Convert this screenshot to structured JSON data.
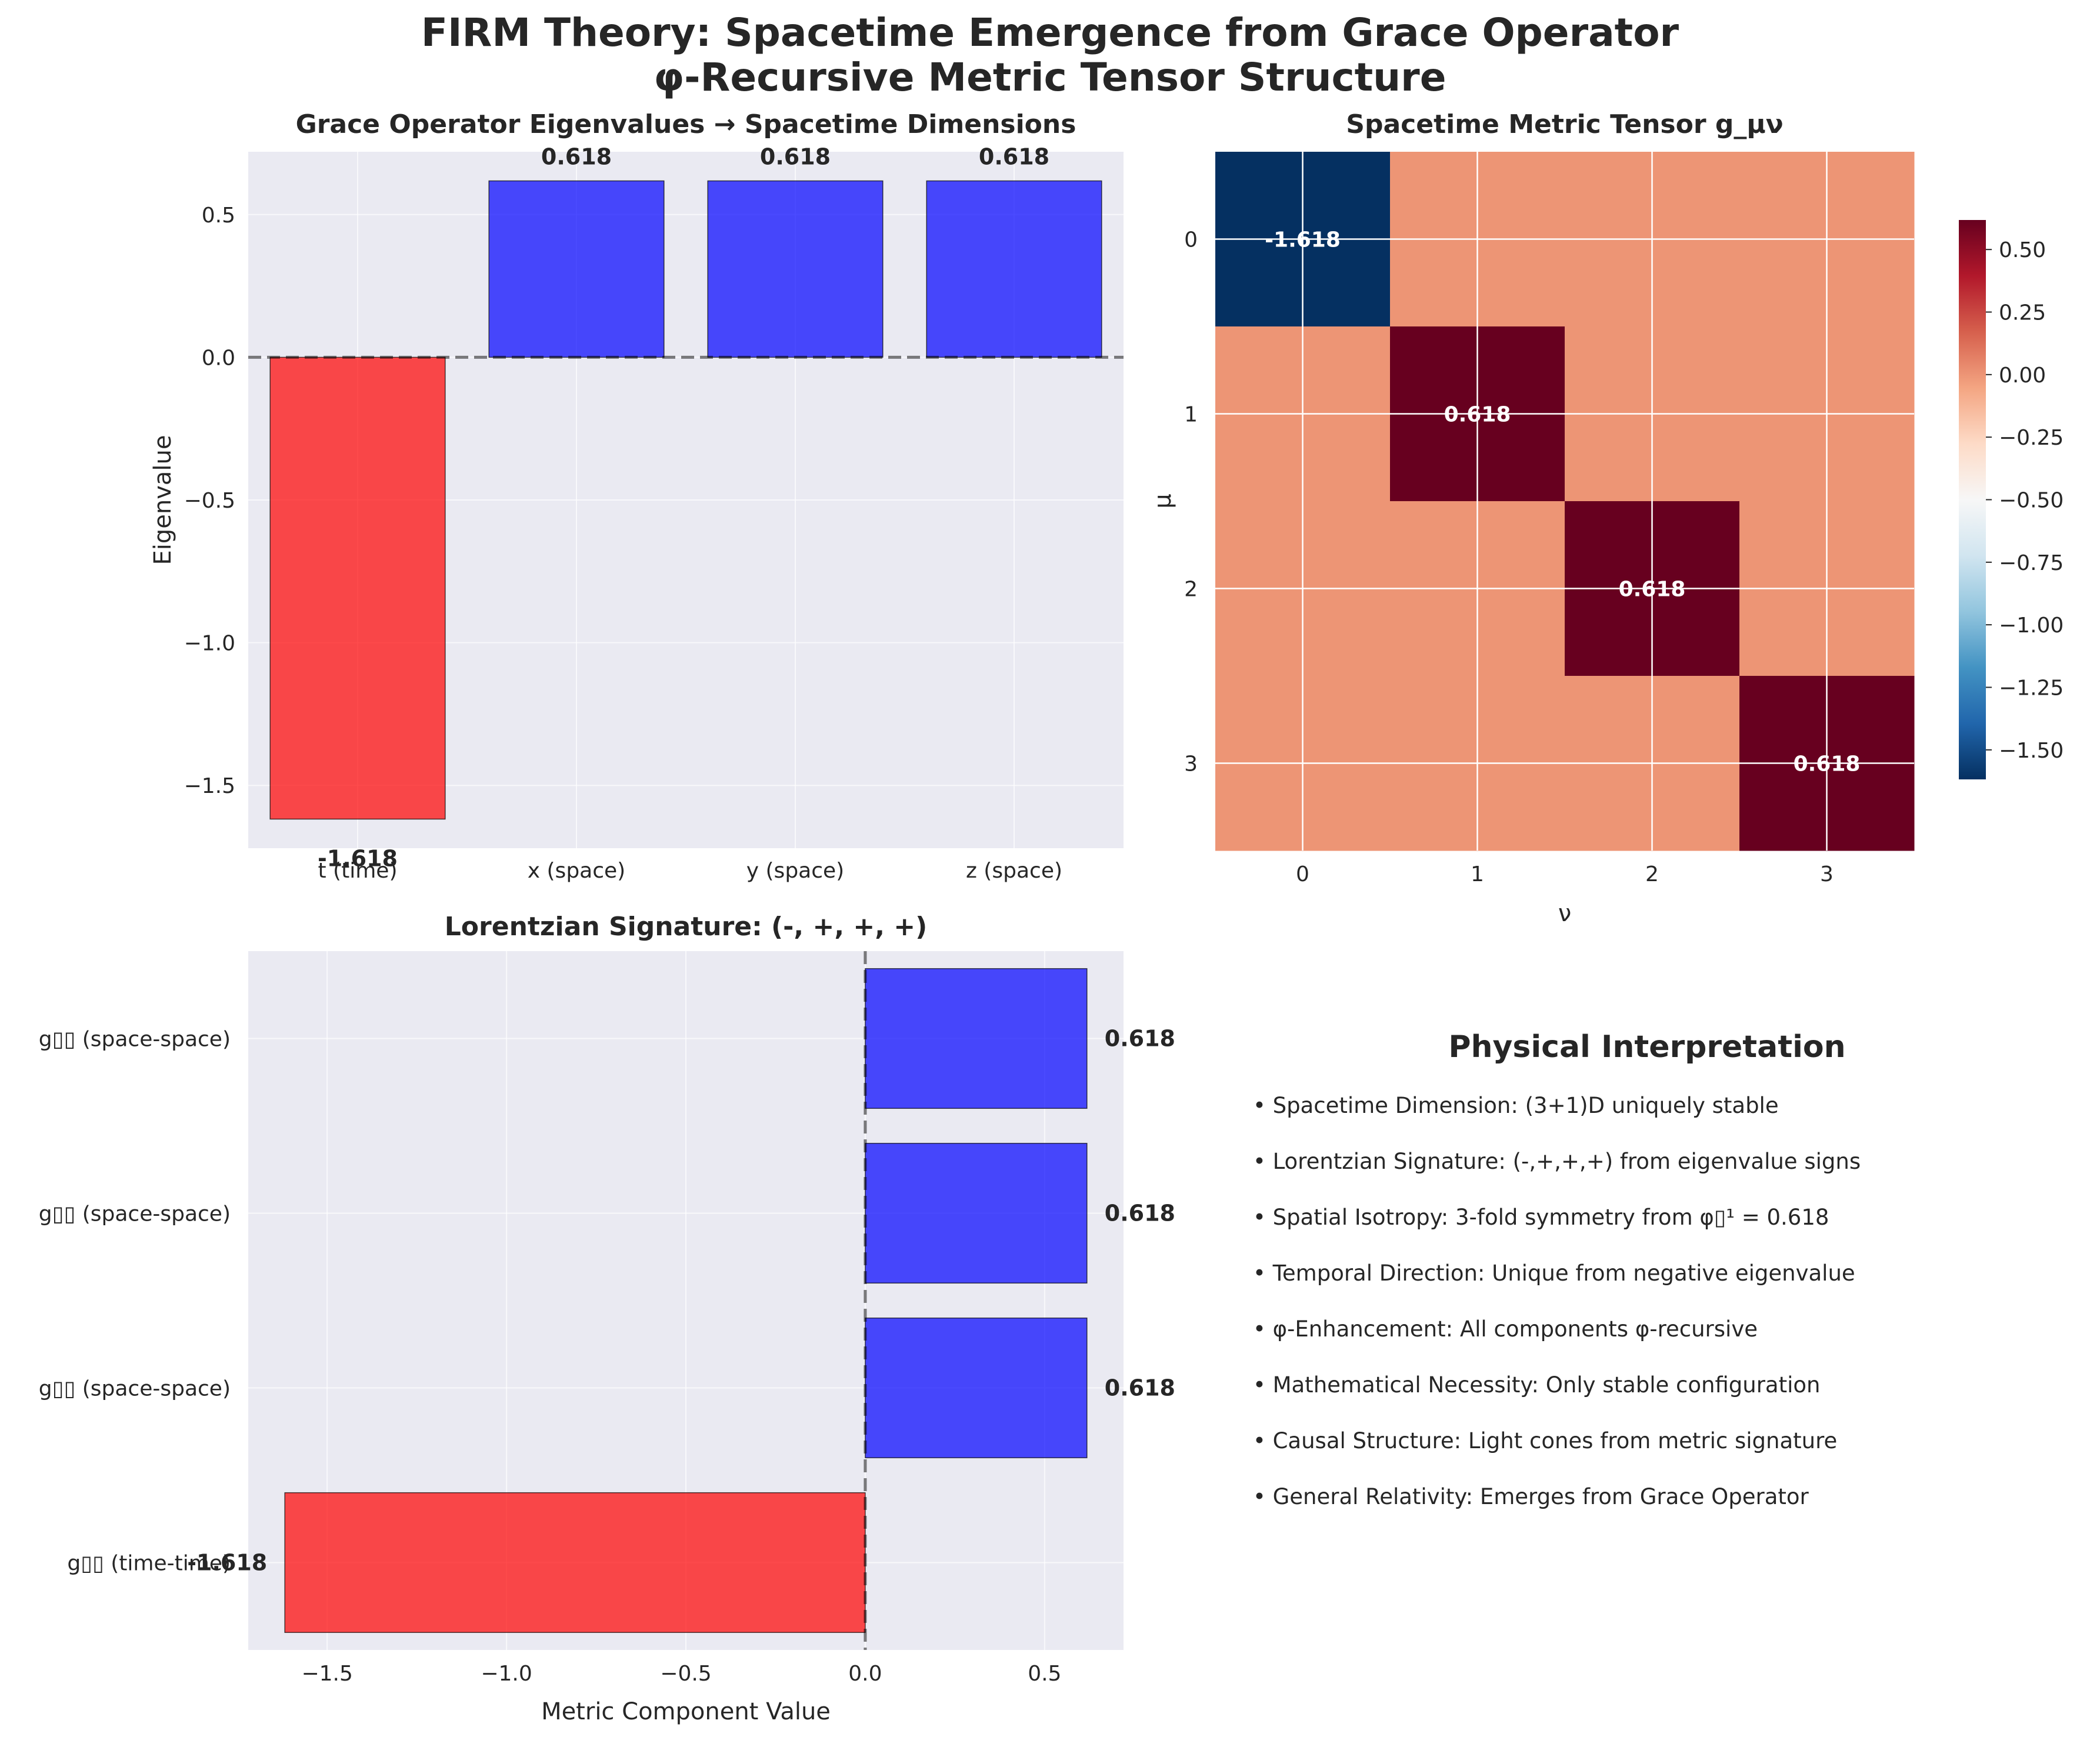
{
  "title": {
    "line1": "FIRM Theory: Spacetime Emergence from Grace Operator",
    "line2": "φ-Recursive Metric Tensor Structure"
  },
  "chart_data": [
    {
      "type": "bar",
      "title": "Grace Operator Eigenvalues → Spacetime Dimensions",
      "xlabel": "",
      "ylabel": "Eigenvalue",
      "categories": [
        "t (time)",
        "x (space)",
        "y (space)",
        "z (space)"
      ],
      "values": [
        -1.618,
        0.618,
        0.618,
        0.618
      ],
      "value_labels": [
        "-1.618",
        "0.618",
        "0.618",
        "0.618"
      ],
      "colors": [
        "#ff0000",
        "#0000ff",
        "#0000ff",
        "#0000ff"
      ],
      "ylim": [
        -1.72,
        0.72
      ],
      "yticks": [
        -1.5,
        -1.0,
        -0.5,
        0.0,
        0.5
      ],
      "ytick_labels": [
        "−1.5",
        "−1.0",
        "−0.5",
        "0.0",
        "0.5"
      ],
      "reference_line": 0,
      "grid": true
    },
    {
      "type": "heatmap",
      "title": "Spacetime Metric Tensor g_μν",
      "xlabel": "ν",
      "ylabel": "μ",
      "x_ticks": [
        "0",
        "1",
        "2",
        "3"
      ],
      "y_ticks": [
        "0",
        "1",
        "2",
        "3"
      ],
      "matrix": [
        [
          -1.618,
          0,
          0,
          0
        ],
        [
          0,
          0.618,
          0,
          0
        ],
        [
          0,
          0,
          0.618,
          0
        ],
        [
          0,
          0,
          0,
          0.618
        ]
      ],
      "cell_labels": [
        "-1.618",
        "0.618",
        "0.618",
        "0.618"
      ],
      "colormap": "RdBu_r",
      "colorbar_range": [
        -1.618,
        0.618
      ],
      "colorbar_ticks": [
        0.5,
        0.25,
        0.0,
        -0.25,
        -0.5,
        -0.75,
        -1.0,
        -1.25,
        -1.5
      ],
      "colorbar_tick_labels": [
        "0.50",
        "0.25",
        "0.00",
        "−0.25",
        "−0.50",
        "−0.75",
        "−1.00",
        "−1.25",
        "−1.50"
      ]
    },
    {
      "type": "bar",
      "orientation": "horizontal",
      "title": "Lorentzian Signature: (-, +, +, +)",
      "xlabel": "Metric Component Value",
      "ylabel": "",
      "categories": [
        "g▯▯ (time-time)",
        "g▯▯ (space-space)",
        "g▯▯ (space-space)",
        "g▯▯ (space-space)"
      ],
      "values": [
        -1.618,
        0.618,
        0.618,
        0.618
      ],
      "value_labels": [
        "-1.618",
        "0.618",
        "0.618",
        "0.618"
      ],
      "colors": [
        "#ff0000",
        "#0000ff",
        "#0000ff",
        "#0000ff"
      ],
      "xlim": [
        -1.72,
        0.72
      ],
      "xticks": [
        -1.5,
        -1.0,
        -0.5,
        0.0,
        0.5
      ],
      "xtick_labels": [
        "−1.5",
        "−1.0",
        "−0.5",
        "0.0",
        "0.5"
      ],
      "reference_line": 0,
      "grid": true
    }
  ],
  "interpretation": {
    "title": "Physical Interpretation",
    "items": [
      "• Spacetime Dimension: (3+1)D uniquely stable",
      "• Lorentzian Signature: (-,+,+,+) from eigenvalue signs",
      "• Spatial Isotropy: 3-fold symmetry from φ▯¹ = 0.618",
      "• Temporal Direction: Unique from negative eigenvalue",
      "• φ-Enhancement: All components φ-recursive",
      "• Mathematical Necessity: Only stable configuration",
      "• Causal Structure: Light cones from metric signature",
      "• General Relativity: Emerges from Grace Operator"
    ]
  }
}
